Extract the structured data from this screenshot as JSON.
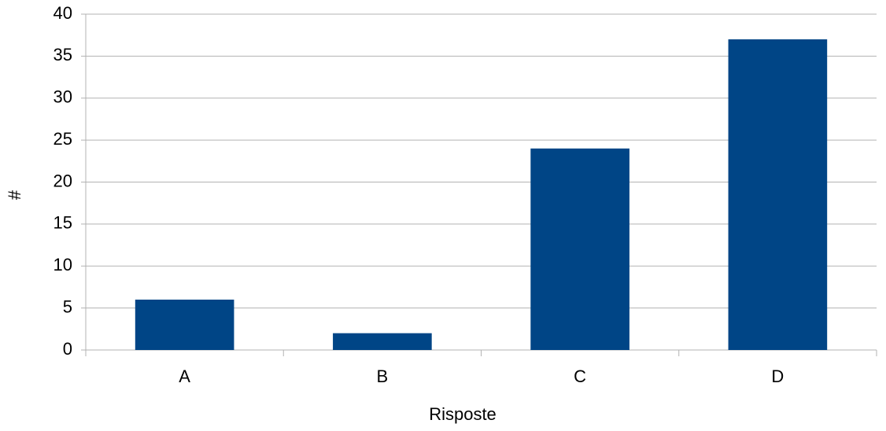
{
  "chart_data": {
    "type": "bar",
    "x_label": "Risposte",
    "y_label": "#",
    "categories": [
      "A",
      "B",
      "C",
      "D"
    ],
    "values": [
      6,
      2,
      24,
      37
    ],
    "color": "#004586",
    "ylim": [
      0,
      40
    ],
    "yticks": [
      0,
      5,
      10,
      15,
      20,
      25,
      30,
      35,
      40
    ],
    "grid": true
  }
}
